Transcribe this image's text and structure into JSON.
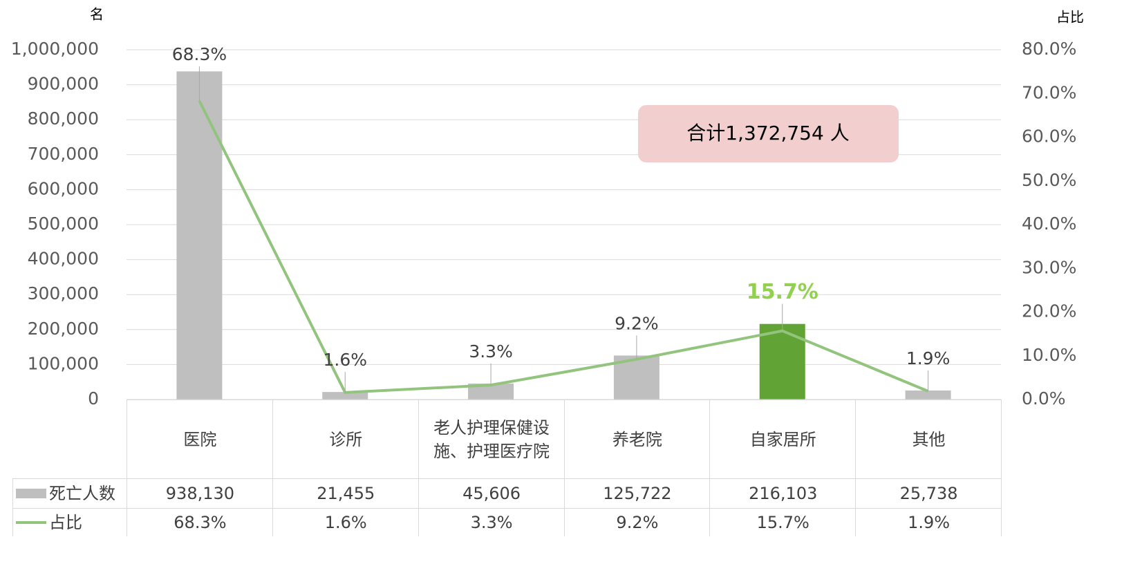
{
  "chart_data": {
    "type": "bar",
    "annotation": "合计1,372,754 人",
    "y_label": "名",
    "y2_label": "占比",
    "categories": [
      "医院",
      "诊所",
      "老人护理保健设施、护理医疗院",
      "养老院",
      "自家居所",
      "其他"
    ],
    "series": [
      {
        "name": "死亡人数",
        "type": "bar",
        "color": "#bfbfbf",
        "bar_colors": [
          "#bfbfbf",
          "#bfbfbf",
          "#bfbfbf",
          "#bfbfbf",
          "#62a336",
          "#bfbfbf"
        ],
        "values": [
          938130,
          21455,
          45606,
          125722,
          216103,
          25738
        ],
        "value_labels": [
          "938,130",
          "21,455",
          "45,606",
          "125,722",
          "216,103",
          "25,738"
        ]
      },
      {
        "name": "占比",
        "type": "line",
        "axis": "y2",
        "color": "#93c47d",
        "label_colors": [
          "#404040",
          "#404040",
          "#404040",
          "#404040",
          "#92d050",
          "#404040"
        ],
        "values": [
          68.3,
          1.6,
          3.3,
          9.2,
          15.7,
          1.9
        ],
        "value_labels": [
          "68.3%",
          "1.6%",
          "3.3%",
          "9.2%",
          "15.7%",
          "1.9%"
        ]
      }
    ],
    "ylim": [
      0,
      1000000
    ],
    "yticks": [
      0,
      {
        "value": 100000,
        "label": "100,000"
      },
      {
        "value": 200000,
        "label": "200,000"
      },
      {
        "value": 300000,
        "label": "300,000"
      },
      {
        "value": 400000,
        "label": "400,000"
      },
      {
        "value": 500000,
        "label": "500,000"
      },
      {
        "value": 600000,
        "label": "600,000"
      },
      {
        "value": 700000,
        "label": "700,000"
      },
      {
        "value": 800000,
        "label": "800,000"
      },
      {
        "value": 900000,
        "label": "900,000"
      },
      {
        "value": 1000000,
        "label": "1,000,000"
      }
    ],
    "y2lim": [
      0,
      80
    ],
    "y2ticks": [
      {
        "value": 0,
        "label": "0.0%"
      },
      {
        "value": 10,
        "label": "10.0%"
      },
      {
        "value": 20,
        "label": "20.0%"
      },
      {
        "value": 30,
        "label": "30.0%"
      },
      {
        "value": 40,
        "label": "40.0%"
      },
      {
        "value": 50,
        "label": "50.0%"
      },
      {
        "value": 60,
        "label": "60.0%"
      },
      {
        "value": 70,
        "label": "70.0%"
      },
      {
        "value": 80,
        "label": "80.0%"
      }
    ],
    "grid": true
  }
}
